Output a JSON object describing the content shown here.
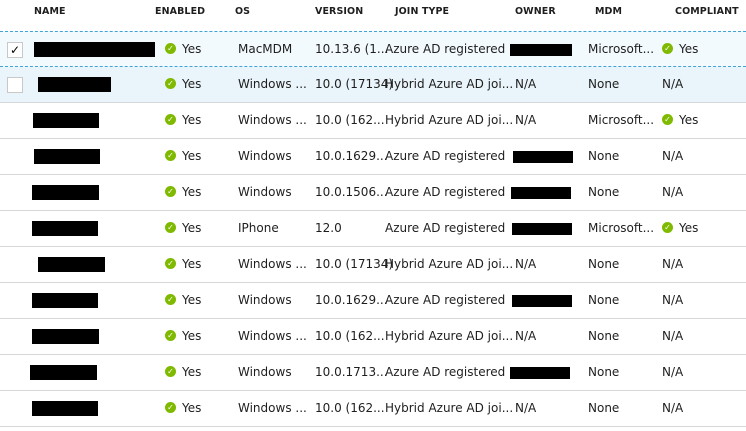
{
  "columns": {
    "name": "NAME",
    "enabled": "ENABLED",
    "os": "OS",
    "version": "VERSION",
    "join_type": "JOIN TYPE",
    "owner": "OWNER",
    "mdm": "MDM",
    "compliant": "COMPLIANT"
  },
  "colors": {
    "check_green": "#7fba00",
    "selected_border": "#3fa3d6"
  },
  "rows": [
    {
      "checked": true,
      "name": {
        "redacted": true
      },
      "enabled": "Yes",
      "os": "MacMDM",
      "version": "10.13.6 (1...",
      "join_type": "Azure AD registered",
      "owner": null,
      "mdm": "Microsoft...",
      "compliant": "Yes",
      "compliant_icon": true
    },
    {
      "checked": false,
      "name": {
        "redacted": true
      },
      "enabled": "Yes",
      "os": "Windows ...",
      "version": "10.0 (17134)",
      "join_type": "Hybrid Azure AD joi...",
      "owner": "N/A",
      "mdm": "None",
      "compliant": "N/A",
      "compliant_icon": false
    },
    {
      "name": {
        "redacted": true
      },
      "enabled": "Yes",
      "os": "Windows ...",
      "version": "10.0 (162...",
      "join_type": "Hybrid Azure AD joi...",
      "owner": "N/A",
      "mdm": "Microsoft...",
      "compliant": "Yes",
      "compliant_icon": true
    },
    {
      "name": {
        "redacted": true
      },
      "enabled": "Yes",
      "os": "Windows",
      "version": "10.0.1629...",
      "join_type": "Azure AD registered",
      "owner": null,
      "mdm": "None",
      "compliant": "N/A",
      "compliant_icon": false
    },
    {
      "name": {
        "redacted": true
      },
      "enabled": "Yes",
      "os": "Windows",
      "version": "10.0.1506...",
      "join_type": "Azure AD registered",
      "owner": null,
      "mdm": "None",
      "compliant": "N/A",
      "compliant_icon": false
    },
    {
      "name": {
        "redacted": true
      },
      "enabled": "Yes",
      "os": "IPhone",
      "version": "12.0",
      "join_type": "Azure AD registered",
      "owner": null,
      "mdm": "Microsoft...",
      "compliant": "Yes",
      "compliant_icon": true
    },
    {
      "name": {
        "redacted": true
      },
      "enabled": "Yes",
      "os": "Windows ...",
      "version": "10.0 (17134)",
      "join_type": "Hybrid Azure AD joi...",
      "owner": "N/A",
      "mdm": "None",
      "compliant": "N/A",
      "compliant_icon": false
    },
    {
      "name": {
        "redacted": true
      },
      "enabled": "Yes",
      "os": "Windows",
      "version": "10.0.1629...",
      "join_type": "Azure AD registered",
      "owner": null,
      "mdm": "None",
      "compliant": "N/A",
      "compliant_icon": false
    },
    {
      "name": {
        "redacted": true
      },
      "enabled": "Yes",
      "os": "Windows ...",
      "version": "10.0 (162...",
      "join_type": "Hybrid Azure AD joi...",
      "owner": "N/A",
      "mdm": "None",
      "compliant": "N/A",
      "compliant_icon": false
    },
    {
      "name": {
        "redacted": true
      },
      "enabled": "Yes",
      "os": "Windows",
      "version": "10.0.1713...",
      "join_type": "Azure AD registered",
      "owner": null,
      "mdm": "None",
      "compliant": "N/A",
      "compliant_icon": false
    },
    {
      "name": {
        "redacted": true
      },
      "enabled": "Yes",
      "os": "Windows ...",
      "version": "10.0 (162...",
      "join_type": "Hybrid Azure AD joi...",
      "owner": "N/A",
      "mdm": "None",
      "compliant": "N/A",
      "compliant_icon": false
    }
  ]
}
